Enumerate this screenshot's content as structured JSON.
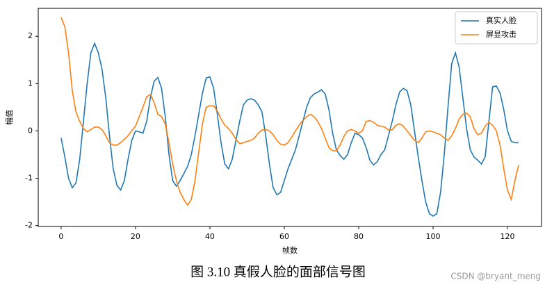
{
  "chart_data": {
    "type": "line",
    "xlabel": "帧数",
    "ylabel": "幅值",
    "x": [
      0,
      1,
      2,
      3,
      4,
      5,
      6,
      7,
      8,
      9,
      10,
      11,
      12,
      13,
      14,
      15,
      16,
      17,
      18,
      19,
      20,
      21,
      22,
      23,
      24,
      25,
      26,
      27,
      28,
      29,
      30,
      31,
      32,
      33,
      34,
      35,
      36,
      37,
      38,
      39,
      40,
      41,
      42,
      43,
      44,
      45,
      46,
      47,
      48,
      49,
      50,
      51,
      52,
      53,
      54,
      55,
      56,
      57,
      58,
      59,
      60,
      61,
      62,
      63,
      64,
      65,
      66,
      67,
      68,
      69,
      70,
      71,
      72,
      73,
      74,
      75,
      76,
      77,
      78,
      79,
      80,
      81,
      82,
      83,
      84,
      85,
      86,
      87,
      88,
      89,
      90,
      91,
      92,
      93,
      94,
      95,
      96,
      97,
      98,
      99,
      100,
      101,
      102,
      103,
      104,
      105,
      106,
      107,
      108,
      109,
      110,
      111,
      112,
      113,
      114,
      115,
      116,
      117,
      118,
      119,
      120,
      121,
      122,
      123
    ],
    "series": [
      {
        "name": "真实人脸",
        "color": "#1f77b4",
        "values": [
          -0.15,
          -0.55,
          -1.0,
          -1.2,
          -1.1,
          -0.6,
          0.2,
          1.0,
          1.65,
          1.85,
          1.65,
          1.3,
          0.7,
          -0.1,
          -0.8,
          -1.15,
          -1.25,
          -1.05,
          -0.6,
          -0.2,
          0.0,
          -0.02,
          -0.05,
          0.2,
          0.7,
          1.05,
          1.13,
          0.9,
          0.3,
          -0.5,
          -1.05,
          -1.17,
          -1.05,
          -0.9,
          -0.75,
          -0.5,
          -0.1,
          0.35,
          0.8,
          1.12,
          1.14,
          0.9,
          0.35,
          -0.25,
          -0.7,
          -0.8,
          -0.6,
          -0.2,
          0.2,
          0.55,
          0.65,
          0.68,
          0.65,
          0.55,
          0.4,
          -0.1,
          -0.7,
          -1.2,
          -1.35,
          -1.3,
          -1.05,
          -0.8,
          -0.6,
          -0.4,
          -0.1,
          0.2,
          0.5,
          0.7,
          0.78,
          0.82,
          0.87,
          0.78,
          0.45,
          -0.05,
          -0.4,
          -0.52,
          -0.6,
          -0.5,
          -0.25,
          -0.05,
          -0.08,
          -0.15,
          -0.35,
          -0.62,
          -0.72,
          -0.65,
          -0.5,
          -0.4,
          -0.1,
          0.2,
          0.55,
          0.82,
          0.9,
          0.85,
          0.55,
          0.0,
          -0.55,
          -1.05,
          -1.5,
          -1.75,
          -1.8,
          -1.75,
          -1.3,
          -0.5,
          0.5,
          1.42,
          1.65,
          1.35,
          0.7,
          0.05,
          -0.4,
          -0.55,
          -0.62,
          -0.7,
          -0.55,
          0.2,
          0.93,
          0.95,
          0.8,
          0.45,
          0.0,
          -0.22,
          -0.25,
          -0.25
        ]
      },
      {
        "name": "屏显攻击",
        "color": "#ff7f0e",
        "values": [
          2.4,
          2.2,
          1.65,
          0.85,
          0.4,
          0.2,
          0.05,
          -0.02,
          0.03,
          0.08,
          0.08,
          0.03,
          -0.1,
          -0.25,
          -0.3,
          -0.3,
          -0.25,
          -0.18,
          -0.1,
          0.0,
          0.1,
          0.3,
          0.5,
          0.72,
          0.77,
          0.6,
          0.35,
          0.3,
          0.15,
          -0.25,
          -0.7,
          -1.05,
          -1.3,
          -1.45,
          -1.57,
          -1.45,
          -1.05,
          -0.45,
          0.15,
          0.5,
          0.53,
          0.53,
          0.42,
          0.25,
          0.12,
          0.05,
          -0.05,
          -0.18,
          -0.27,
          -0.25,
          -0.22,
          -0.2,
          -0.15,
          -0.05,
          0.02,
          0.03,
          0.0,
          -0.08,
          -0.2,
          -0.28,
          -0.3,
          -0.25,
          -0.13,
          0.0,
          0.12,
          0.22,
          0.3,
          0.35,
          0.3,
          0.2,
          0.05,
          -0.15,
          -0.35,
          -0.42,
          -0.42,
          -0.3,
          -0.12,
          0.0,
          0.03,
          0.0,
          -0.05,
          0.0,
          0.2,
          0.22,
          0.18,
          0.12,
          0.1,
          0.08,
          0.02,
          0.02,
          0.12,
          0.15,
          0.1,
          0.0,
          -0.1,
          -0.2,
          -0.25,
          -0.15,
          -0.02,
          0.0,
          -0.02,
          -0.05,
          -0.08,
          -0.15,
          -0.2,
          -0.1,
          0.05,
          0.25,
          0.35,
          0.38,
          0.3,
          0.05,
          -0.08,
          -0.05,
          0.1,
          0.18,
          0.12,
          0.0,
          -0.3,
          -0.8,
          -1.25,
          -1.45,
          -1.05,
          -0.72
        ]
      }
    ],
    "xlim": [
      -6.15,
      129.15
    ],
    "ylim": [
      -2.02,
      2.59
    ],
    "xticks": [
      0,
      20,
      40,
      60,
      80,
      100,
      120
    ],
    "yticks": [
      -2,
      -1,
      0,
      1,
      2
    ],
    "legend": "upper right"
  },
  "caption": "图 3.10  真假人脸的面部信号图",
  "watermark": "CSDN @bryant_meng"
}
